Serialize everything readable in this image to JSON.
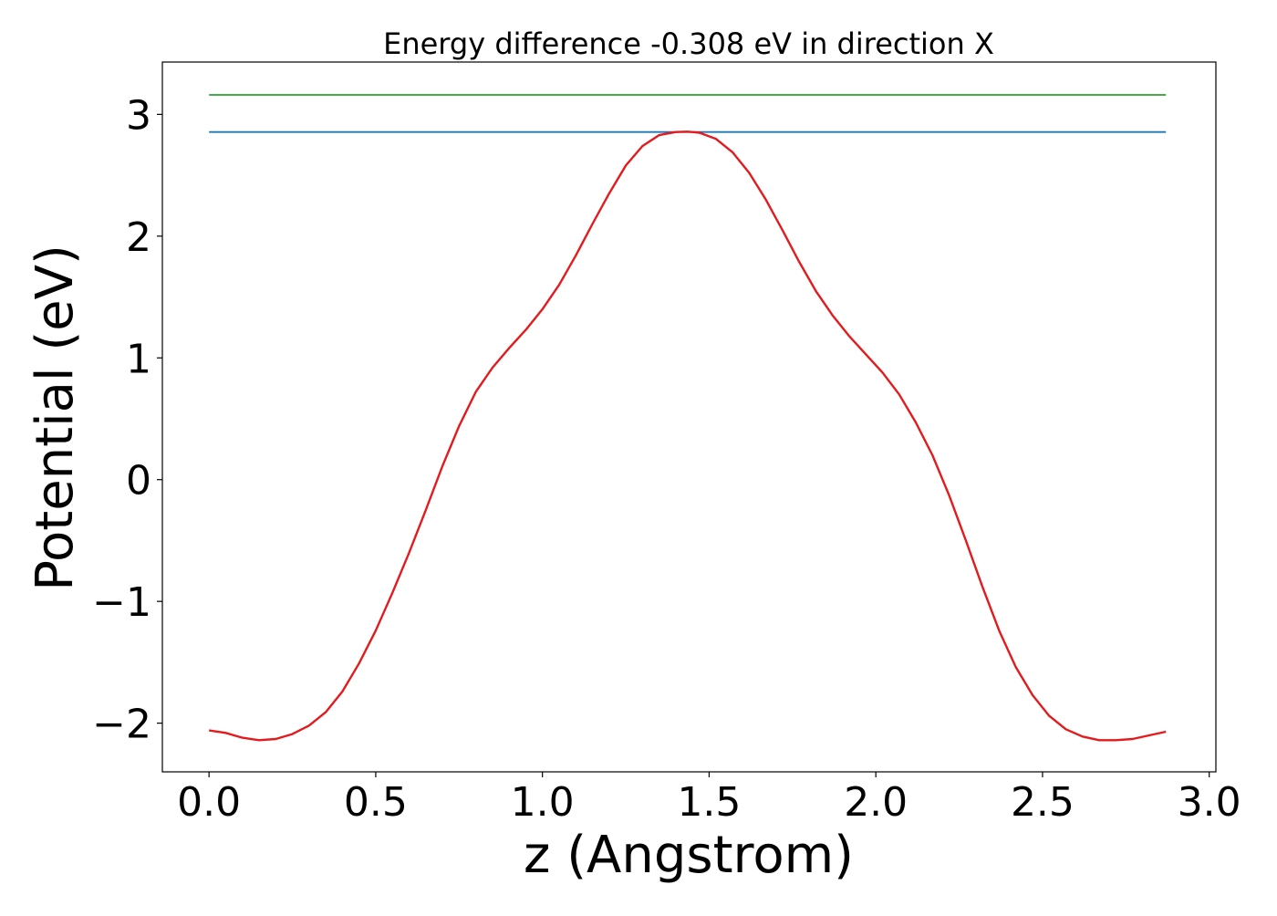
{
  "chart_data": {
    "type": "line",
    "title": "Energy difference -0.308 eV in direction X",
    "xlabel": "z (Angstrom)",
    "ylabel": "Potential (eV)",
    "xlim": [
      -0.14,
      3.02
    ],
    "ylim": [
      -2.4,
      3.43
    ],
    "xticks": [
      0.0,
      0.5,
      1.0,
      1.5,
      2.0,
      2.5,
      3.0
    ],
    "xtick_labels": [
      "0.0",
      "0.5",
      "1.0",
      "1.5",
      "2.0",
      "2.5",
      "3.0"
    ],
    "yticks": [
      -2,
      -1,
      0,
      1,
      2,
      3
    ],
    "ytick_labels": [
      "−2",
      "−1",
      "0",
      "1",
      "2",
      "3"
    ],
    "grid": false,
    "legend": "none",
    "series": [
      {
        "color": "#2ca02c",
        "x": [
          0.0,
          2.87
        ],
        "y": [
          3.16,
          3.16
        ]
      },
      {
        "color": "#1f77b4",
        "x": [
          0.0,
          2.87
        ],
        "y": [
          2.855,
          2.855
        ]
      },
      {
        "color": "#e41a1c",
        "x": [
          0.0,
          0.05,
          0.1,
          0.15,
          0.2,
          0.25,
          0.3,
          0.35,
          0.4,
          0.45,
          0.5,
          0.55,
          0.6,
          0.65,
          0.7,
          0.75,
          0.8,
          0.85,
          0.9,
          0.95,
          1.0,
          1.05,
          1.1,
          1.15,
          1.2,
          1.25,
          1.3,
          1.35,
          1.4,
          1.435,
          1.47,
          1.52,
          1.57,
          1.62,
          1.67,
          1.72,
          1.77,
          1.82,
          1.87,
          1.92,
          1.97,
          2.02,
          2.07,
          2.12,
          2.17,
          2.22,
          2.27,
          2.32,
          2.37,
          2.42,
          2.47,
          2.52,
          2.57,
          2.62,
          2.67,
          2.72,
          2.77,
          2.82,
          2.87
        ],
        "y": [
          -2.06,
          -2.08,
          -2.12,
          -2.14,
          -2.13,
          -2.09,
          -2.02,
          -1.91,
          -1.74,
          -1.51,
          -1.24,
          -0.93,
          -0.6,
          -0.25,
          0.11,
          0.44,
          0.72,
          0.92,
          1.08,
          1.23,
          1.4,
          1.6,
          1.84,
          2.1,
          2.35,
          2.58,
          2.74,
          2.83,
          2.855,
          2.858,
          2.85,
          2.8,
          2.69,
          2.52,
          2.3,
          2.05,
          1.79,
          1.55,
          1.35,
          1.18,
          1.03,
          0.88,
          0.7,
          0.47,
          0.2,
          -0.13,
          -0.5,
          -0.88,
          -1.24,
          -1.54,
          -1.77,
          -1.94,
          -2.05,
          -2.11,
          -2.14,
          -2.14,
          -2.13,
          -2.1,
          -2.07
        ]
      }
    ]
  }
}
